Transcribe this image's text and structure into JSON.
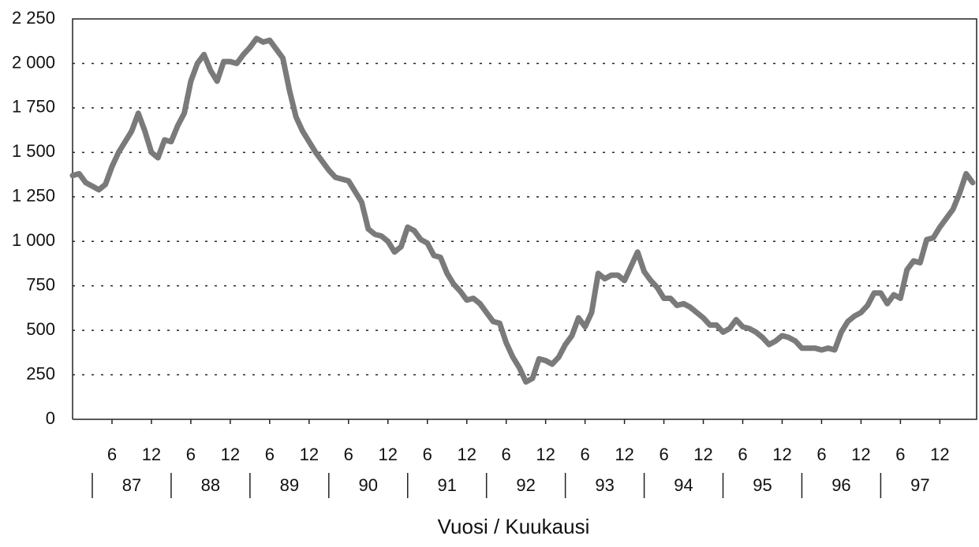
{
  "chart_data": {
    "type": "line",
    "x_label": "Vuosi / Kuukausi",
    "x": [
      0,
      1,
      2,
      3,
      4,
      5,
      6,
      7,
      8,
      9,
      10,
      11,
      12,
      13,
      14,
      15,
      16,
      17,
      18,
      19,
      20,
      21,
      22,
      23,
      24,
      25,
      26,
      27,
      28,
      29,
      30,
      31,
      32,
      33,
      34,
      35,
      36,
      37,
      38,
      39,
      40,
      41,
      42,
      43,
      44,
      45,
      46,
      47,
      48,
      49,
      50,
      51,
      52,
      53,
      54,
      55,
      56,
      57,
      58,
      59,
      60,
      61,
      62,
      63,
      64,
      65,
      66,
      67,
      68,
      69,
      70,
      71,
      72,
      73,
      74,
      75,
      76,
      77,
      78,
      79,
      80,
      81,
      82,
      83,
      84,
      85,
      86,
      87,
      88,
      89,
      90,
      91,
      92,
      93,
      94,
      95,
      96,
      97,
      98,
      99,
      100,
      101,
      102,
      103,
      104,
      105,
      106,
      107,
      108,
      109,
      110,
      111,
      112,
      113,
      114,
      115,
      116,
      117,
      118,
      119,
      120,
      121,
      122,
      123,
      124,
      125,
      126,
      127,
      128,
      129,
      130,
      131,
      132,
      133,
      134,
      135,
      136,
      137
    ],
    "series": [
      {
        "name": null,
        "color": "#7a7a7a",
        "values": [
          1370,
          1380,
          1330,
          1310,
          1290,
          1320,
          1420,
          1500,
          1560,
          1620,
          1720,
          1620,
          1500,
          1470,
          1570,
          1560,
          1650,
          1720,
          1900,
          2000,
          2050,
          1960,
          1900,
          2010,
          2010,
          2000,
          2050,
          2090,
          2140,
          2120,
          2130,
          2080,
          2030,
          1850,
          1700,
          1620,
          1560,
          1500,
          1450,
          1400,
          1360,
          1350,
          1340,
          1280,
          1220,
          1070,
          1040,
          1030,
          1000,
          940,
          970,
          1080,
          1060,
          1010,
          990,
          920,
          910,
          820,
          760,
          720,
          670,
          680,
          650,
          600,
          550,
          540,
          430,
          350,
          290,
          210,
          230,
          340,
          330,
          310,
          350,
          420,
          470,
          570,
          520,
          600,
          820,
          790,
          810,
          810,
          780,
          860,
          940,
          830,
          780,
          740,
          680,
          680,
          640,
          650,
          630,
          600,
          570,
          530,
          530,
          490,
          510,
          560,
          520,
          510,
          490,
          460,
          420,
          440,
          470,
          460,
          440,
          400,
          400,
          400,
          390,
          400,
          390,
          490,
          550,
          580,
          600,
          640,
          710,
          710,
          650,
          700,
          680,
          840,
          890,
          880,
          1010,
          1020,
          1080,
          1130,
          1180,
          1270,
          1380,
          1330
        ]
      }
    ],
    "xlim": [
      0,
      137.6
    ],
    "xticks": [
      6,
      12,
      {
        "value": 18,
        "label": "6"
      },
      {
        "value": 24,
        "label": "12"
      },
      {
        "value": 30,
        "label": "6"
      },
      {
        "value": 36,
        "label": "12"
      },
      {
        "value": 42,
        "label": "6"
      },
      {
        "value": 48,
        "label": "12"
      },
      {
        "value": 54,
        "label": "6"
      },
      {
        "value": 60,
        "label": "12"
      },
      {
        "value": 66,
        "label": "6"
      },
      {
        "value": 72,
        "label": "12"
      },
      {
        "value": 78,
        "label": "6"
      },
      {
        "value": 84,
        "label": "12"
      },
      {
        "value": 90,
        "label": "6"
      },
      {
        "value": 96,
        "label": "12"
      },
      {
        "value": 102,
        "label": "6"
      },
      {
        "value": 108,
        "label": "12"
      },
      {
        "value": 114,
        "label": "6"
      },
      {
        "value": 120,
        "label": "12"
      },
      {
        "value": 126,
        "label": "6"
      },
      {
        "value": 132,
        "label": "12"
      }
    ],
    "year_labels": [
      "87",
      "88",
      "89",
      "90",
      "91",
      "92",
      "93",
      "94",
      "95",
      "96",
      "97"
    ],
    "ylim": [
      0,
      2250
    ],
    "yticks": [
      0,
      250,
      500,
      750,
      {
        "value": 1000,
        "label": "1 000"
      },
      {
        "value": 1250,
        "label": "1 250"
      },
      {
        "value": 1500,
        "label": "1 500"
      },
      {
        "value": 1750,
        "label": "1 750"
      },
      {
        "value": 2000,
        "label": "2 000"
      },
      {
        "value": 2250,
        "label": "2 250"
      }
    ],
    "grid": true
  }
}
